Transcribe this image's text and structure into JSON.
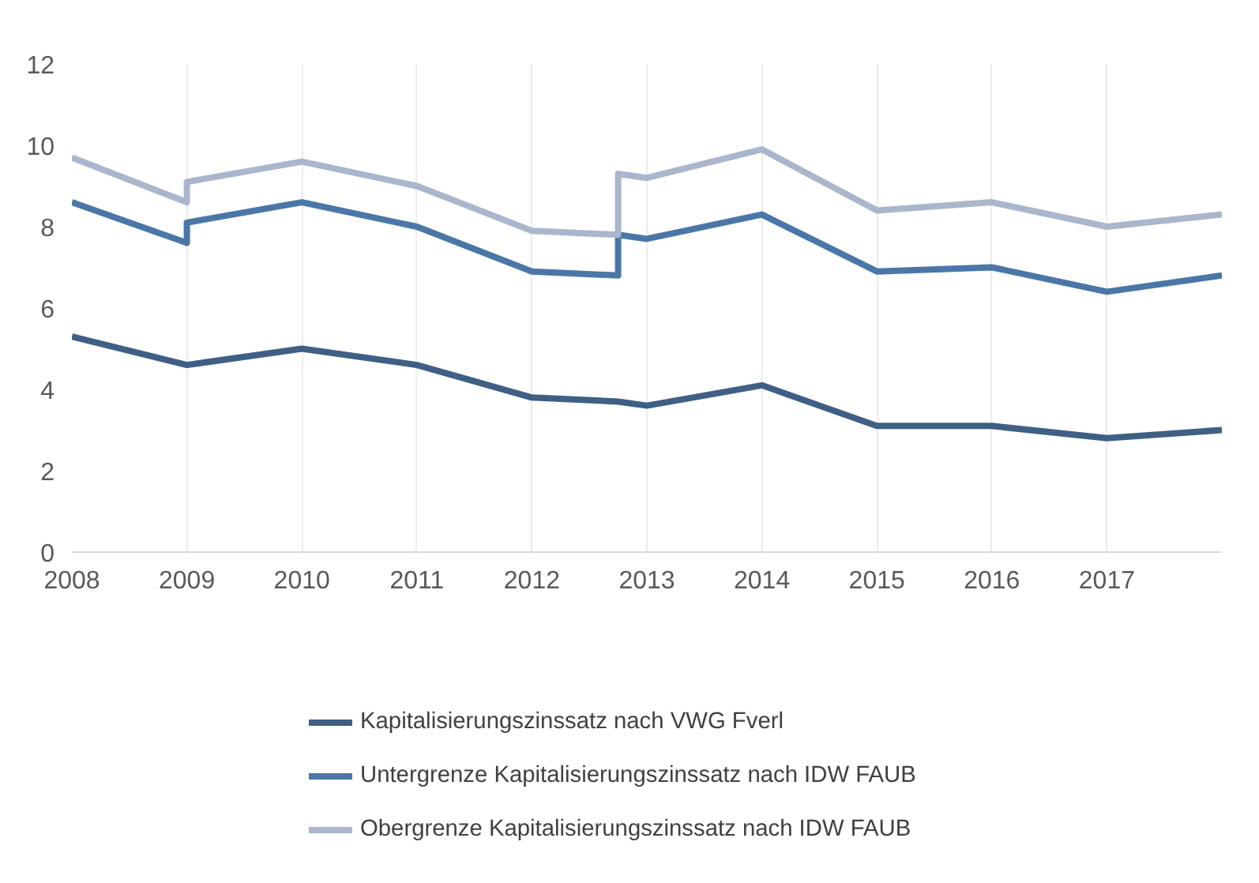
{
  "chart_data": {
    "type": "line",
    "xlim": [
      2008,
      2018
    ],
    "xticks": [
      2008,
      2009,
      2010,
      2011,
      2012,
      2013,
      2014,
      2015,
      2016,
      2017
    ],
    "ylim": [
      0,
      12
    ],
    "yticks": [
      0,
      2,
      4,
      6,
      8,
      10,
      12
    ],
    "grid": "x",
    "legend": "bottom",
    "line_style": "solid",
    "series": [
      {
        "name": "Kapitalisierungszinssatz nach VWG Fverl",
        "color": "#3f5f85",
        "x": [
          2008,
          2009,
          2010,
          2011,
          2012,
          2012.75,
          2013,
          2014,
          2015,
          2016,
          2017,
          2018
        ],
        "values": [
          5.3,
          4.6,
          5.0,
          4.6,
          3.8,
          3.7,
          3.6,
          4.1,
          3.1,
          3.1,
          2.8,
          3.0
        ]
      },
      {
        "name": "Untergrenze Kapitalisierungszinssatz nach IDW FAUB",
        "color": "#4a77a8",
        "x": [
          2008,
          2009,
          2009,
          2010,
          2011,
          2012,
          2012.75,
          2012.75,
          2013,
          2014,
          2015,
          2016,
          2017,
          2018
        ],
        "values": [
          8.6,
          7.6,
          8.1,
          8.6,
          8.0,
          6.9,
          6.8,
          7.8,
          7.7,
          8.3,
          6.9,
          7.0,
          6.4,
          6.8
        ]
      },
      {
        "name": "Obergrenze Kapitalisierungszinssatz nach IDW FAUB",
        "color": "#a9b6cc",
        "x": [
          2008,
          2009,
          2009,
          2010,
          2011,
          2012,
          2012.75,
          2012.75,
          2013,
          2014,
          2015,
          2016,
          2017,
          2018
        ],
        "values": [
          9.7,
          8.6,
          9.1,
          9.6,
          9.0,
          7.9,
          7.8,
          9.3,
          9.2,
          9.9,
          8.4,
          8.6,
          8.0,
          8.3
        ]
      }
    ]
  }
}
